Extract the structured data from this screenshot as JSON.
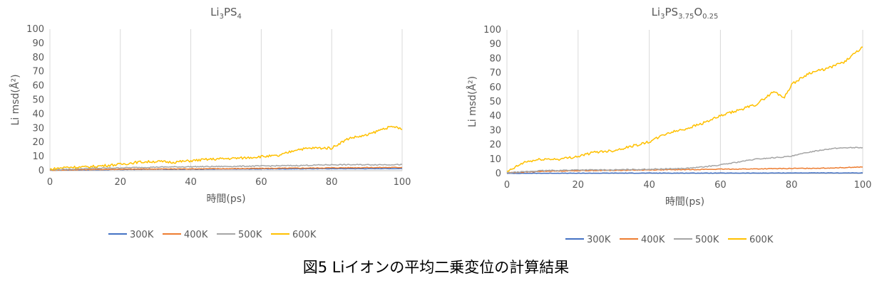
{
  "caption": "図5 Liイオンの平均二乗変位の計算結果",
  "chart_data": [
    {
      "type": "line",
      "title": "Li3PS4",
      "title_parts": {
        "base": "Li",
        "sub1": "3",
        "mid": "PS",
        "sub2": "4"
      },
      "xlabel": "時間(ps)",
      "ylabel": "Li msd(Å²)",
      "xlim": [
        0,
        100
      ],
      "ylim": [
        0,
        100
      ],
      "xticks": [
        0,
        20,
        40,
        60,
        80,
        100
      ],
      "yticks": [
        0,
        10,
        20,
        30,
        40,
        50,
        60,
        70,
        80,
        90,
        100
      ],
      "grid": "vertical",
      "legend_position": "bottom",
      "colors": {
        "300K": "#4472C4",
        "400K": "#ED7D31",
        "500K": "#A5A5A5",
        "600K": "#FFC000"
      },
      "series": [
        {
          "name": "300K",
          "x": [
            0,
            10,
            20,
            30,
            40,
            50,
            60,
            70,
            80,
            90,
            100
          ],
          "values": [
            0.3,
            0.6,
            0.8,
            1.0,
            1.0,
            1.1,
            1.2,
            1.3,
            1.4,
            1.4,
            1.5
          ]
        },
        {
          "name": "400K",
          "x": [
            0,
            10,
            20,
            30,
            40,
            50,
            60,
            70,
            80,
            90,
            100
          ],
          "values": [
            0.3,
            0.8,
            1.0,
            1.2,
            1.3,
            1.4,
            1.6,
            1.8,
            2.0,
            2.2,
            2.3
          ]
        },
        {
          "name": "500K",
          "x": [
            0,
            10,
            20,
            30,
            40,
            50,
            60,
            70,
            80,
            90,
            100
          ],
          "values": [
            0.5,
            1.5,
            2.0,
            2.5,
            2.8,
            3.0,
            3.3,
            3.6,
            4.2,
            4.2,
            4.3
          ]
        },
        {
          "name": "600K",
          "x": [
            0,
            5,
            10,
            15,
            20,
            25,
            30,
            35,
            40,
            45,
            50,
            55,
            60,
            65,
            70,
            75,
            80,
            82,
            85,
            90,
            95,
            98,
            100
          ],
          "values": [
            1.0,
            2.5,
            2.5,
            3.5,
            4.5,
            6.0,
            6.5,
            6.0,
            7.0,
            8.0,
            8.5,
            9.0,
            10.0,
            10.5,
            15.0,
            16.0,
            16.0,
            19.0,
            23.0,
            25.0,
            30.0,
            31.0,
            29.0
          ]
        }
      ]
    },
    {
      "type": "line",
      "title": "Li3PS3.75O0.25",
      "title_parts": {
        "base": "Li",
        "sub1": "3",
        "mid": "PS",
        "sub2": "3.75",
        "mid2": "O",
        "sub3": "0.25"
      },
      "xlabel": "時間(ps)",
      "ylabel": "Li msd(Å²)",
      "xlim": [
        0,
        100
      ],
      "ylim": [
        0,
        100
      ],
      "xticks": [
        0,
        20,
        40,
        60,
        80,
        100
      ],
      "yticks": [
        0,
        10,
        20,
        30,
        40,
        50,
        60,
        70,
        80,
        90,
        100
      ],
      "grid": "vertical",
      "legend_position": "bottom",
      "colors": {
        "300K": "#4472C4",
        "400K": "#ED7D31",
        "500K": "#A5A5A5",
        "600K": "#FFC000"
      },
      "series": [
        {
          "name": "300K",
          "x": [
            0,
            10,
            20,
            30,
            40,
            50,
            60,
            70,
            80,
            90,
            100
          ],
          "values": [
            0.1,
            0.2,
            0.2,
            0.3,
            0.3,
            0.3,
            0.3,
            0.3,
            0.4,
            0.4,
            0.4
          ]
        },
        {
          "name": "400K",
          "x": [
            0,
            10,
            20,
            30,
            40,
            50,
            60,
            70,
            80,
            90,
            100
          ],
          "values": [
            0.5,
            1.5,
            2.0,
            2.2,
            2.5,
            2.7,
            3.0,
            3.2,
            3.5,
            3.8,
            4.5
          ]
        },
        {
          "name": "500K",
          "x": [
            0,
            10,
            20,
            30,
            40,
            50,
            55,
            60,
            65,
            70,
            75,
            80,
            85,
            90,
            95,
            100
          ],
          "values": [
            0.5,
            2.0,
            2.5,
            2.5,
            3.0,
            3.5,
            4.5,
            6.0,
            8.0,
            10.0,
            11.0,
            12.0,
            15.0,
            17.0,
            18.0,
            18.0
          ]
        },
        {
          "name": "600K",
          "x": [
            0,
            5,
            10,
            15,
            20,
            25,
            30,
            35,
            40,
            45,
            50,
            55,
            60,
            65,
            70,
            75,
            78,
            80,
            85,
            90,
            95,
            100
          ],
          "values": [
            1.0,
            8.0,
            10.0,
            10.0,
            12.0,
            15.0,
            16.0,
            19.0,
            22.0,
            28.0,
            31.0,
            35.0,
            40.0,
            44.0,
            48.0,
            57.0,
            53.0,
            62.0,
            70.0,
            73.0,
            78.0,
            88.0
          ]
        }
      ]
    }
  ]
}
